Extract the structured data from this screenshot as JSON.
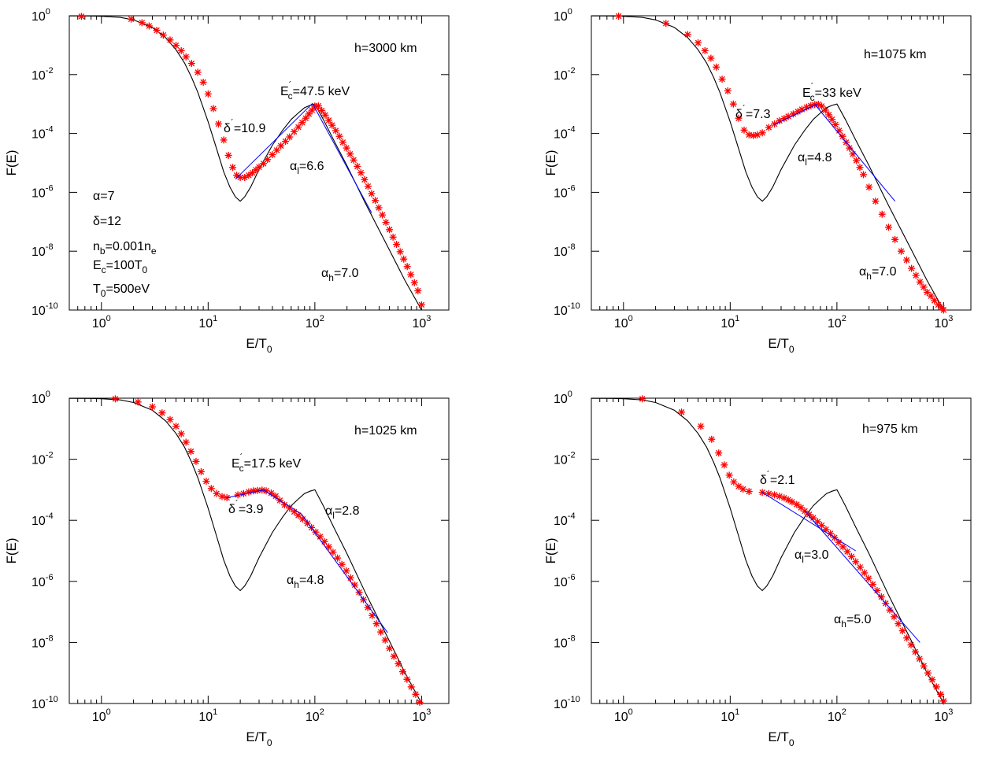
{
  "chart_data": [
    {
      "type": "line",
      "title": "",
      "xlabel": "E/T0",
      "ylabel": "F(E)",
      "xscale": "log",
      "yscale": "log",
      "xlim": [
        0.5,
        1800
      ],
      "ylim": [
        1e-10,
        1
      ],
      "x_ticks": [
        1,
        10,
        100,
        1000
      ],
      "y_ticks": [
        1e-10,
        1e-08,
        1e-06,
        0.0001,
        0.01,
        1
      ],
      "grid": false,
      "legend": "none",
      "colors": {
        "model": "#000000",
        "data": "#ff0000",
        "fit": "#0000ff"
      },
      "annotations": {
        "height": "h=3000 km",
        "params": [
          "α=7",
          "δ=12",
          "n_b=0.001n_e",
          "E_c=100T_0",
          "T_0=500eV"
        ],
        "ec_prime": "E'_c=47.5 keV",
        "delta_prime": "δ'=10.9",
        "alpha_l": "α_l=6.6",
        "alpha_h": "α_h=7.0"
      },
      "series": [
        {
          "style": "line",
          "x": [
            0.5,
            0.8,
            1,
            1.5,
            2,
            3,
            4,
            5,
            6,
            7,
            8,
            10,
            12,
            14,
            16,
            18,
            20,
            22,
            25,
            30,
            40,
            50,
            60,
            70,
            80,
            90,
            100,
            120,
            150,
            200,
            300,
            500,
            700,
            1000
          ],
          "y": [
            0.99,
            0.98,
            0.96,
            0.88,
            0.72,
            0.4,
            0.18,
            0.07,
            0.025,
            0.008,
            0.0025,
            0.00025,
            3e-05,
            5e-06,
            1.5e-06,
            7e-07,
            5e-07,
            7e-07,
            1.5e-06,
            6e-06,
            4e-05,
            0.00013,
            0.0003,
            0.0005,
            0.00075,
            0.0009,
            0.001,
            0.0003,
            6e-05,
            8e-06,
            4e-07,
            1.1e-08,
            1e-09,
            1e-10
          ]
        },
        {
          "style": "markers",
          "x": [
            0.65,
            1.9,
            2.4,
            2.8,
            3.3,
            3.8,
            4.4,
            5,
            5.6,
            6.2,
            7,
            8,
            9,
            10,
            11.2,
            12.5,
            14,
            15.5,
            17,
            18.5,
            20,
            22,
            24,
            26,
            28,
            30,
            33,
            36,
            40,
            44,
            48,
            53,
            58,
            64,
            70,
            76,
            82,
            88,
            94,
            100,
            108,
            116,
            125,
            135,
            145,
            157,
            170,
            183,
            198,
            214,
            231,
            250,
            270,
            292,
            315,
            340,
            368,
            397,
            429,
            463,
            500,
            540,
            583,
            630,
            680,
            734,
            793,
            856,
            925,
            1000
          ],
          "y": [
            0.95,
            0.77,
            0.58,
            0.45,
            0.32,
            0.22,
            0.15,
            0.098,
            0.065,
            0.04,
            0.024,
            0.012,
            0.0055,
            0.0022,
            0.0007,
            0.00021,
            6e-05,
            1.8e-05,
            7e-06,
            3.8e-06,
            3.2e-06,
            3.2e-06,
            3.8e-06,
            4.6e-06,
            5.8e-06,
            7.2e-06,
            9.5e-06,
            1.3e-05,
            1.9e-05,
            2.7e-05,
            3.8e-05,
            5.4e-05,
            7.6e-05,
            0.000115,
            0.000165,
            0.000235,
            0.00033,
            0.00046,
            0.00062,
            0.00085,
            0.00086,
            0.0006,
            0.00042,
            0.00028,
            0.00019,
            0.000125,
            8e-05,
            5e-05,
            3.2e-05,
            2e-05,
            1.25e-05,
            7.6e-06,
            4.6e-06,
            2.7e-06,
            1.6e-06,
            9e-07,
            5.3e-07,
            3e-07,
            1.7e-07,
            9.5e-08,
            5.4e-08,
            3e-08,
            1.7e-08,
            9.6e-09,
            5.4e-09,
            3e-09,
            1.6e-09,
            8.5e-10,
            4.5e-10,
            1.5e-10
          ]
        },
        {
          "style": "line",
          "x": [
            18,
            95
          ],
          "y": [
            2.8e-06,
            0.00105
          ]
        },
        {
          "style": "line",
          "x": [
            95,
            340
          ],
          "y": [
            0.00105,
            2e-07
          ]
        }
      ]
    },
    {
      "type": "line",
      "title": "",
      "xlabel": "E/T0",
      "ylabel": "F(E)",
      "xscale": "log",
      "yscale": "log",
      "xlim": [
        0.5,
        1800
      ],
      "ylim": [
        1e-10,
        1
      ],
      "x_ticks": [
        1,
        10,
        100,
        1000
      ],
      "y_ticks": [
        1e-10,
        1e-08,
        1e-06,
        0.0001,
        0.01,
        1
      ],
      "grid": false,
      "legend": "none",
      "colors": {
        "model": "#000000",
        "data": "#ff0000",
        "fit": "#0000ff"
      },
      "annotations": {
        "height": "h=1075 km",
        "ec_prime": "E'_c=33 keV",
        "delta_prime": "δ'=7.3",
        "alpha_l": "α_l=4.8",
        "alpha_h": "α_h=7.0"
      },
      "series": [
        {
          "style": "line",
          "x": [
            0.5,
            0.8,
            1,
            1.5,
            2,
            3,
            4,
            5,
            6,
            7,
            8,
            10,
            12,
            14,
            16,
            18,
            20,
            22,
            25,
            30,
            40,
            50,
            60,
            70,
            80,
            90,
            100,
            120,
            150,
            200,
            300,
            500,
            700,
            1000
          ],
          "y": [
            0.99,
            0.98,
            0.96,
            0.88,
            0.72,
            0.4,
            0.18,
            0.07,
            0.025,
            0.008,
            0.0025,
            0.00025,
            3e-05,
            5e-06,
            1.5e-06,
            7e-07,
            5e-07,
            7e-07,
            1.5e-06,
            6e-06,
            4e-05,
            0.00013,
            0.0003,
            0.0005,
            0.00075,
            0.0009,
            0.001,
            0.0003,
            6e-05,
            8e-06,
            4e-07,
            1.1e-08,
            1e-09,
            1e-10
          ]
        },
        {
          "style": "markers",
          "x": [
            0.9,
            2.5,
            4,
            5,
            5.8,
            6.6,
            7.4,
            8.4,
            9.5,
            10.7,
            12,
            13.5,
            15,
            16.5,
            18,
            20,
            23,
            26,
            29,
            32,
            35,
            39,
            43,
            47,
            52,
            57,
            62,
            67,
            72,
            78,
            84,
            90,
            97,
            105,
            113,
            122,
            131,
            141,
            152,
            164,
            177,
            200,
            230,
            265,
            305,
            350,
            400,
            450,
            500,
            550,
            600,
            650,
            700,
            760,
            820,
            890,
            960,
            1000
          ],
          "y": [
            0.97,
            0.55,
            0.23,
            0.12,
            0.065,
            0.036,
            0.018,
            0.007,
            0.0028,
            0.001,
            0.00033,
            0.00013,
            9e-05,
            8.5e-05,
            9e-05,
            0.000105,
            0.00016,
            0.00021,
            0.00027,
            0.00032,
            0.00038,
            0.00046,
            0.00055,
            0.00066,
            0.00078,
            0.00088,
            0.00096,
            0.00098,
            0.00085,
            0.00062,
            0.00043,
            0.0003,
            0.0002,
            0.000125,
            8e-05,
            5e-05,
            3.2e-05,
            2e-05,
            1.2e-05,
            7e-06,
            4e-06,
            1.5e-06,
            5e-07,
            1.8e-07,
            6.5e-08,
            2.5e-08,
            1e-08,
            5e-09,
            2.6e-09,
            1.5e-09,
            9e-10,
            6e-10,
            4e-10,
            3e-10,
            2.1e-10,
            1.5e-10,
            1.2e-10,
            1e-10
          ]
        },
        {
          "style": "line",
          "x": [
            26,
            65
          ],
          "y": [
            0.0002,
            0.00098
          ]
        },
        {
          "style": "line",
          "x": [
            62,
            350
          ],
          "y": [
            0.00098,
            5e-07
          ]
        }
      ]
    },
    {
      "type": "line",
      "title": "",
      "xlabel": "E/T0",
      "ylabel": "F(E)",
      "xscale": "log",
      "yscale": "log",
      "xlim": [
        0.5,
        1800
      ],
      "ylim": [
        1e-10,
        1
      ],
      "x_ticks": [
        1,
        10,
        100,
        1000
      ],
      "y_ticks": [
        1e-10,
        1e-08,
        1e-06,
        0.0001,
        0.01,
        1
      ],
      "grid": false,
      "legend": "none",
      "colors": {
        "model": "#000000",
        "data": "#ff0000",
        "fit": "#0000ff"
      },
      "annotations": {
        "height": "h=1025 km",
        "ec_prime": "E'_c=17.5 keV",
        "delta_prime": "δ'=3.9",
        "alpha_l": "α_l=2.8",
        "alpha_h": "α_h=4.8"
      },
      "series": [
        {
          "style": "line",
          "x": [
            0.5,
            0.8,
            1,
            1.5,
            2,
            3,
            4,
            5,
            6,
            7,
            8,
            10,
            12,
            14,
            16,
            18,
            20,
            22,
            25,
            30,
            40,
            50,
            60,
            70,
            80,
            90,
            100,
            120,
            150,
            200,
            300,
            500,
            700,
            1000
          ],
          "y": [
            0.99,
            0.98,
            0.96,
            0.88,
            0.72,
            0.4,
            0.18,
            0.07,
            0.025,
            0.008,
            0.0025,
            0.00025,
            3e-05,
            5e-06,
            1.5e-06,
            7e-07,
            5e-07,
            7e-07,
            1.5e-06,
            6e-06,
            4e-05,
            0.00013,
            0.0003,
            0.0005,
            0.00075,
            0.0009,
            0.001,
            0.0003,
            6e-05,
            8e-06,
            4e-07,
            1.1e-08,
            1e-09,
            1e-10
          ]
        },
        {
          "style": "markers",
          "x": [
            1.35,
            2.2,
            3,
            3.7,
            4.4,
            5,
            5.6,
            6.2,
            6.9,
            7.7,
            8.6,
            9.6,
            10.7,
            12,
            13.5,
            15,
            19,
            21.5,
            24,
            26.5,
            29,
            32,
            35,
            39,
            43,
            47,
            52,
            58,
            64,
            70,
            77,
            85,
            93,
            102,
            112,
            123,
            135,
            148,
            163,
            179,
            197,
            216,
            237,
            260,
            285,
            313,
            344,
            378,
            415,
            456,
            500,
            550,
            605,
            665,
            730,
            800,
            880,
            960
          ],
          "y": [
            0.95,
            0.75,
            0.52,
            0.33,
            0.2,
            0.12,
            0.068,
            0.036,
            0.018,
            0.0085,
            0.0039,
            0.0019,
            0.0011,
            0.00075,
            0.0006,
            0.00055,
            0.00068,
            0.00075,
            0.00085,
            0.00092,
            0.00095,
            0.00098,
            0.00092,
            0.00078,
            0.00062,
            0.00045,
            0.00032,
            0.00025,
            0.00019,
            0.000145,
            0.00011,
            8e-05,
            5.8e-05,
            4.1e-05,
            2.9e-05,
            2e-05,
            1.35e-05,
            9e-06,
            5.8e-06,
            3.6e-06,
            2.2e-06,
            1.3e-06,
            7.6e-07,
            4.4e-07,
            2.5e-07,
            1.4e-07,
            7.6e-08,
            4.1e-08,
            2.2e-08,
            1.2e-08,
            6.4e-09,
            3.5e-09,
            2e-09,
            1.1e-09,
            6.2e-10,
            3.5e-10,
            2e-10,
            1.1e-10
          ]
        },
        {
          "style": "line",
          "x": [
            15,
            33
          ],
          "y": [
            0.00055,
            0.00098
          ]
        },
        {
          "style": "line",
          "x": [
            33,
            75
          ],
          "y": [
            0.00098,
            0.00016
          ]
        },
        {
          "style": "line",
          "x": [
            75,
            480
          ],
          "y": [
            0.00016,
            2.1e-08
          ]
        }
      ]
    },
    {
      "type": "line",
      "title": "",
      "xlabel": "E/T0",
      "ylabel": "F(E)",
      "xscale": "log",
      "yscale": "log",
      "xlim": [
        0.5,
        1800
      ],
      "ylim": [
        1e-10,
        1
      ],
      "x_ticks": [
        1,
        10,
        100,
        1000
      ],
      "y_ticks": [
        1e-10,
        1e-08,
        1e-06,
        0.0001,
        0.01,
        1
      ],
      "grid": false,
      "legend": "none",
      "colors": {
        "model": "#000000",
        "data": "#ff0000",
        "fit": "#0000ff"
      },
      "annotations": {
        "height": "h=975 km",
        "delta_prime": "δ'=2.1",
        "alpha_l": "α_l=3.0",
        "alpha_h": "α_h=5.0"
      },
      "series": [
        {
          "style": "line",
          "x": [
            0.5,
            0.8,
            1,
            1.5,
            2,
            3,
            4,
            5,
            6,
            7,
            8,
            10,
            12,
            14,
            16,
            18,
            20,
            22,
            25,
            30,
            40,
            50,
            60,
            70,
            80,
            90,
            100,
            120,
            150,
            200,
            300,
            500,
            700,
            1000
          ],
          "y": [
            0.99,
            0.98,
            0.96,
            0.88,
            0.72,
            0.4,
            0.18,
            0.07,
            0.025,
            0.008,
            0.0025,
            0.00025,
            3e-05,
            5e-06,
            1.5e-06,
            7e-07,
            5e-07,
            7e-07,
            1.5e-06,
            6e-06,
            4e-05,
            0.00013,
            0.0003,
            0.0005,
            0.00075,
            0.0009,
            0.001,
            0.0003,
            6e-05,
            8e-06,
            4e-07,
            1.1e-08,
            1e-09,
            1e-10
          ]
        },
        {
          "style": "markers",
          "x": [
            1.5,
            3.5,
            5.3,
            6.7,
            7.8,
            8.8,
            9.8,
            10.8,
            12,
            13.2,
            15,
            20,
            23,
            26,
            29,
            32,
            35,
            38,
            42,
            46,
            50,
            55,
            60,
            66,
            72,
            79,
            87,
            95,
            104,
            114,
            125,
            137,
            150,
            165,
            181,
            198,
            217,
            238,
            261,
            286,
            313,
            343,
            376,
            412,
            452,
            495,
            542,
            594,
            651,
            713,
            781,
            856,
            938,
            1000
          ],
          "y": [
            0.95,
            0.35,
            0.12,
            0.045,
            0.016,
            0.0065,
            0.003,
            0.0018,
            0.0013,
            0.00105,
            0.00088,
            0.00082,
            0.00075,
            0.00068,
            0.00061,
            0.00054,
            0.00047,
            0.0004,
            0.00033,
            0.00026,
            0.0002,
            0.000155,
            0.00012,
            9e-05,
            6.8e-05,
            5e-05,
            3.7e-05,
            2.7e-05,
            1.9e-05,
            1.35e-05,
            9.4e-06,
            6.5e-06,
            4.4e-06,
            2.9e-06,
            1.9e-06,
            1.25e-06,
            8e-07,
            5e-07,
            3.1e-07,
            1.9e-07,
            1.15e-07,
            6.9e-08,
            4.1e-08,
            2.4e-08,
            1.4e-08,
            8.3e-09,
            4.9e-09,
            2.9e-09,
            1.7e-09,
            1e-09,
            6e-10,
            3.5e-10,
            2e-10,
            1.2e-10
          ]
        },
        {
          "style": "line",
          "x": [
            20,
            150
          ],
          "y": [
            0.00082,
            1e-05
          ]
        },
        {
          "style": "line",
          "x": [
            50,
            600
          ],
          "y": [
            0.0002,
            1e-08
          ]
        }
      ]
    }
  ]
}
